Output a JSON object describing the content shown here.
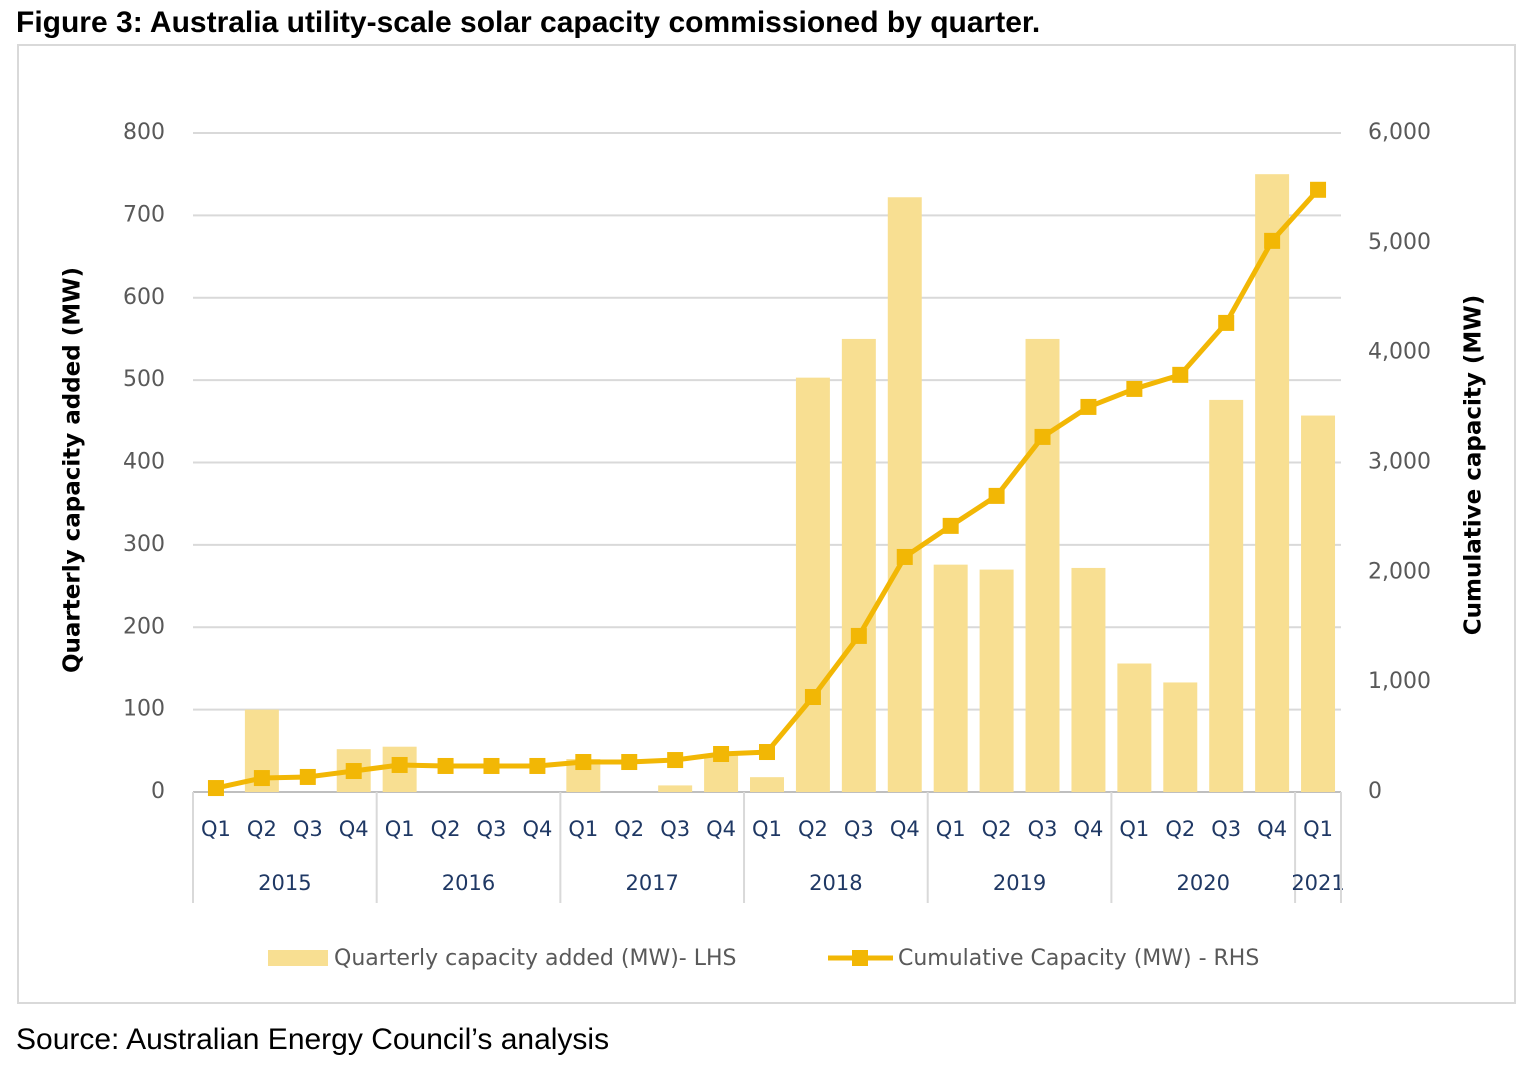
{
  "chart_data": {
    "type": "bar",
    "title": "Figure 3: Australia utility-scale solar capacity commissioned by quarter.",
    "source": "Source: Australian Energy Council’s analysis",
    "y_label": "Quarterly capacity added (MW)",
    "y2_label": "Cumulative capacity (MW)",
    "categories": [
      "Q1",
      "Q2",
      "Q3",
      "Q4",
      "Q1",
      "Q2",
      "Q3",
      "Q4",
      "Q1",
      "Q2",
      "Q3",
      "Q4",
      "Q1",
      "Q2",
      "Q3",
      "Q4",
      "Q1",
      "Q2",
      "Q3",
      "Q4",
      "Q1",
      "Q2",
      "Q3",
      "Q4",
      "Q1"
    ],
    "x_groups": [
      "2015",
      null,
      null,
      null,
      "2016",
      null,
      null,
      null,
      "2017",
      null,
      null,
      null,
      "2018",
      null,
      null,
      null,
      "2019",
      null,
      null,
      null,
      "2020",
      null,
      null,
      null,
      "2021"
    ],
    "series": [
      {
        "name": "Quarterly capacity added (MW)- LHS",
        "type": "bar",
        "color": "#f8df92",
        "values": [
          0,
          100,
          0,
          52,
          55,
          0,
          0,
          0,
          40,
          0,
          8,
          45,
          18,
          503,
          550,
          722,
          276,
          270,
          550,
          272,
          156,
          133,
          476,
          750,
          457
        ]
      },
      {
        "name": "Cumulative Capacity (MW) - RHS",
        "type": "line",
        "axis": "y2",
        "color": "#f2b705",
        "values": [
          36,
          127,
          137,
          191,
          246,
          237,
          237,
          237,
          273,
          273,
          291,
          346,
          364,
          865,
          1421,
          2140,
          2423,
          2696,
          3233,
          3506,
          3670,
          3798,
          4271,
          5018,
          5483
        ]
      }
    ],
    "ylim": [
      0,
      800
    ],
    "yticks": [
      0,
      100,
      200,
      300,
      400,
      500,
      600,
      700,
      800
    ],
    "y2lim": [
      0,
      6000
    ],
    "y2ticks": [
      0,
      {
        "value": 1000,
        "label": "1,000"
      },
      {
        "value": 2000,
        "label": "2,000"
      },
      {
        "value": 3000,
        "label": "3,000"
      },
      {
        "value": 4000,
        "label": "4,000"
      },
      {
        "value": 5000,
        "label": "5,000"
      },
      {
        "value": 6000,
        "label": "6,000"
      }
    ],
    "grid": true,
    "legend": "bottom"
  }
}
